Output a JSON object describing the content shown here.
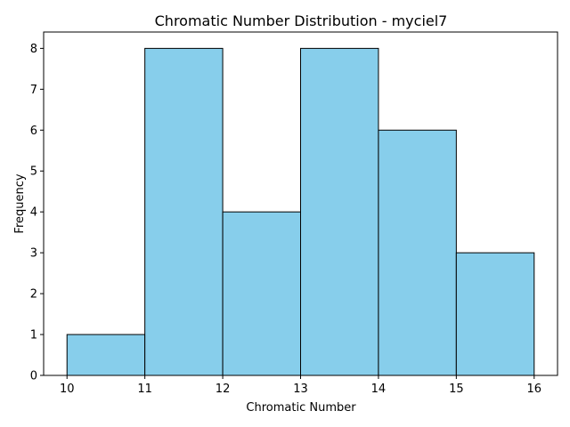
{
  "chart_data": {
    "type": "bar",
    "title": "Chromatic Number Distribution - myciel7",
    "xlabel": "Chromatic Number",
    "ylabel": "Frequency",
    "bins": [
      {
        "start": 10,
        "end": 11,
        "value": 1
      },
      {
        "start": 11,
        "end": 12,
        "value": 8
      },
      {
        "start": 12,
        "end": 13,
        "value": 4
      },
      {
        "start": 13,
        "end": 14,
        "value": 8
      },
      {
        "start": 14,
        "end": 15,
        "value": 6
      },
      {
        "start": 15,
        "end": 16,
        "value": 3
      }
    ],
    "xticks": [
      "10",
      "11",
      "12",
      "13",
      "14",
      "15",
      "16"
    ],
    "yticks": [
      "0",
      "1",
      "2",
      "3",
      "4",
      "5",
      "6",
      "7",
      "8"
    ],
    "xlim": [
      9.7,
      16.3
    ],
    "ylim": [
      0,
      8.4
    ],
    "grid": false,
    "bar_color": "#87CEEB",
    "edge_color": "#000000"
  }
}
